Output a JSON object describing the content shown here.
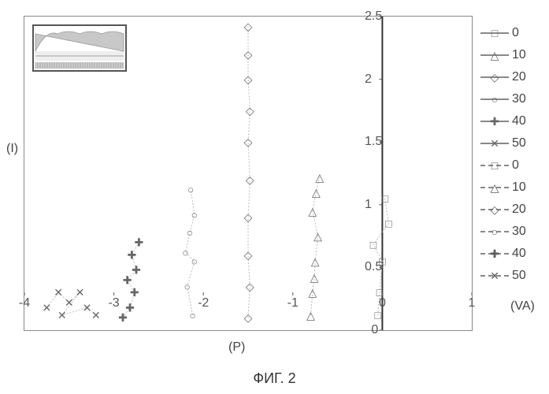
{
  "chart": {
    "type": "scatter",
    "caption": "ФИГ. 2",
    "y_axis_title": "(I)",
    "x_axis_title": "(P)",
    "va_label": "(VA)",
    "xlim": [
      -4,
      1
    ],
    "ylim": [
      0,
      2.5
    ],
    "xtick_step": 1,
    "ytick_step": 0.5,
    "x_ticks": [
      -4,
      -3,
      -2,
      -1,
      0,
      1
    ],
    "y_ticks": [
      "0",
      "0.5",
      "1",
      "1.5",
      "2",
      "2.5"
    ],
    "axis_color": "#333333",
    "tick_gridline_color": "#555555",
    "marker_stroke": "#666666",
    "marker_fill": "none",
    "dashed_marker_fill": "#5b5b5b",
    "plot_border_color": "#888888",
    "background_color": "#ffffff",
    "font_family": "Arial",
    "tick_fontsize": 16,
    "label_fontsize": 16,
    "caption_fontsize": 18,
    "legend_fontsize": 16,
    "yaxis_position_x": 0,
    "xaxis_position_y": 0,
    "series": [
      {
        "label": "0",
        "marker": "square",
        "line_style": "solid",
        "points": [
          [
            -0.05,
            0.12
          ],
          [
            -0.03,
            0.3
          ],
          [
            0.0,
            0.55
          ],
          [
            -0.1,
            0.68
          ],
          [
            0.07,
            0.85
          ],
          [
            0.03,
            1.05
          ]
        ]
      },
      {
        "label": "10",
        "marker": "triangle",
        "line_style": "solid",
        "points": [
          [
            -0.8,
            0.12
          ],
          [
            -0.78,
            0.3
          ],
          [
            -0.76,
            0.42
          ],
          [
            -0.75,
            0.55
          ],
          [
            -0.72,
            0.75
          ],
          [
            -0.78,
            0.95
          ],
          [
            -0.74,
            1.1
          ],
          [
            -0.7,
            1.22
          ]
        ]
      },
      {
        "label": "20",
        "marker": "diamond",
        "line_style": "solid",
        "points": [
          [
            -1.5,
            0.1
          ],
          [
            -1.48,
            0.35
          ],
          [
            -1.5,
            0.6
          ],
          [
            -1.5,
            0.9
          ],
          [
            -1.48,
            1.2
          ],
          [
            -1.5,
            1.5
          ],
          [
            -1.48,
            1.75
          ],
          [
            -1.5,
            2.0
          ],
          [
            -1.5,
            2.2
          ],
          [
            -1.5,
            2.42
          ]
        ]
      },
      {
        "label": "30",
        "marker": "circle",
        "line_style": "solid",
        "points": [
          [
            -2.12,
            0.12
          ],
          [
            -2.18,
            0.35
          ],
          [
            -2.1,
            0.55
          ],
          [
            -2.2,
            0.62
          ],
          [
            -2.15,
            0.78
          ],
          [
            -2.1,
            0.92
          ],
          [
            -2.14,
            1.12
          ]
        ]
      },
      {
        "label": "40",
        "marker": "plus",
        "line_style": "solid",
        "points": [
          [
            -2.9,
            0.1
          ],
          [
            -2.82,
            0.18
          ],
          [
            -2.77,
            0.3
          ],
          [
            -2.85,
            0.4
          ],
          [
            -2.75,
            0.48
          ],
          [
            -2.8,
            0.6
          ],
          [
            -2.72,
            0.7
          ]
        ]
      },
      {
        "label": "50",
        "marker": "x",
        "line_style": "solid",
        "points": [
          [
            -3.75,
            0.18
          ],
          [
            -3.62,
            0.3
          ],
          [
            -3.5,
            0.22
          ],
          [
            -3.38,
            0.3
          ],
          [
            -3.58,
            0.12
          ],
          [
            -3.3,
            0.18
          ],
          [
            -3.2,
            0.12
          ]
        ]
      },
      {
        "label": "0",
        "marker": "square",
        "line_style": "dashed",
        "points": []
      },
      {
        "label": "10",
        "marker": "triangle",
        "line_style": "dashed",
        "points": []
      },
      {
        "label": "20",
        "marker": "diamond",
        "line_style": "dashed",
        "points": []
      },
      {
        "label": "30",
        "marker": "circle",
        "line_style": "dashed",
        "points": []
      },
      {
        "label": "40",
        "marker": "plus",
        "line_style": "dashed",
        "points": []
      },
      {
        "label": "50",
        "marker": "x",
        "line_style": "dashed",
        "points": []
      }
    ],
    "inset": {
      "border_color": "#555555",
      "band_color": "#c8c8c8",
      "line_color": "#888888",
      "hatch_color": "#b0b0b0",
      "width": 120,
      "height": 60
    }
  }
}
